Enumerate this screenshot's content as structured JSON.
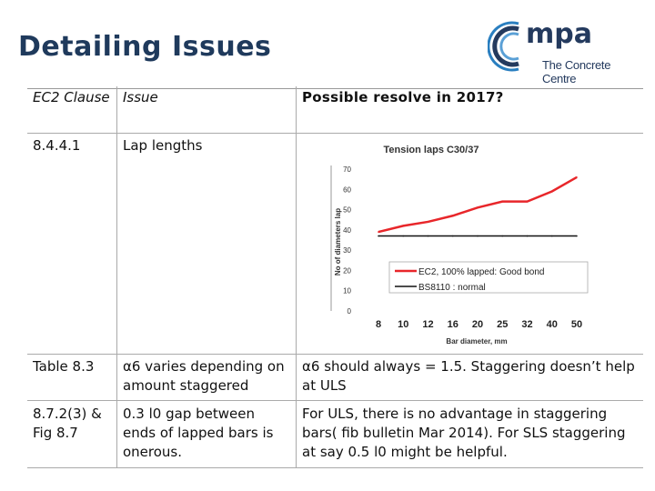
{
  "slide": {
    "title": "Detailing Issues"
  },
  "logo": {
    "name": "mpa",
    "subtitle": "The Concrete Centre"
  },
  "table": {
    "headers": [
      "EC2 Clause",
      "Issue",
      "Possible resolve in 2017?"
    ],
    "rows": [
      {
        "clause": "8.4.4.1",
        "issue": "Lap lengths",
        "resolve": ""
      },
      {
        "clause": "Table 8.3",
        "issue": "α6 varies depending on amount staggered",
        "resolve": "α6 should always = 1.5. Staggering doesn’t help at ULS"
      },
      {
        "clause": "8.7.2(3) & Fig 8.7",
        "issue": "0.3 l0 gap between ends of lapped bars is onerous.",
        "resolve": "For ULS, there is no advantage in staggering bars( fib bulletin Mar 2014). For SLS staggering at say 0.5 l0 might be helpful."
      }
    ]
  },
  "chart_data": {
    "type": "line",
    "title": "Tension laps C30/37",
    "xlabel": "Bar diameter, mm",
    "ylabel": "No of diameters lap",
    "categories": [
      "8",
      "10",
      "12",
      "16",
      "20",
      "25",
      "32",
      "40",
      "50"
    ],
    "ylim": [
      0,
      70
    ],
    "yticks": [
      "0",
      "10",
      "20",
      "30",
      "40",
      "50",
      "60",
      "70"
    ],
    "grid": false,
    "legend_position": "bottom-right",
    "series": [
      {
        "name": "EC2, 100% lapped: Good bond",
        "color": "#e8262a",
        "values": [
          39,
          42,
          44,
          47,
          51,
          54,
          54,
          59,
          66
        ]
      },
      {
        "name": "BS8110 : normal",
        "color": "#111111",
        "values": [
          37,
          37,
          37,
          37,
          37,
          37,
          37,
          37,
          37
        ]
      }
    ]
  },
  "colors": {
    "title": "#1f3a5c",
    "logo": "#243a5e",
    "logo_accent": "#2a7fc0"
  }
}
